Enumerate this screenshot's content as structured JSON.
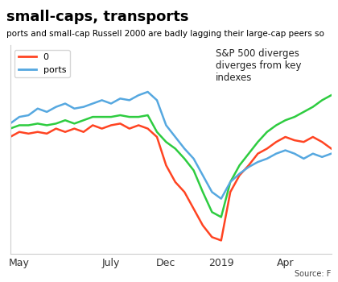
{
  "chart_data": {
    "type": "line",
    "title": "small-caps, transports",
    "subtitle": "ports and small-cap Russell 2000 are badly lagging their large-cap peers so",
    "annotations": [
      "S&P 500 diverges diverges from key indexes"
    ],
    "source": "Source: F",
    "categories": [
      null,
      "May",
      null,
      null,
      null,
      null,
      null,
      null,
      null,
      null,
      null,
      "July",
      null,
      null,
      null,
      null,
      null,
      "Dec",
      null,
      null,
      null,
      null,
      null,
      "2019",
      null,
      null,
      null,
      null,
      null,
      null,
      "Apr",
      null,
      null,
      null,
      null,
      null
    ],
    "series": [
      {
        "color": "#2ecc40",
        "values": [
          75,
          77,
          77,
          78,
          77,
          78,
          80,
          78,
          80,
          82,
          82,
          82,
          83,
          82,
          82,
          83,
          73,
          67,
          63,
          57,
          50,
          37,
          25,
          22,
          43,
          53,
          60,
          67,
          73,
          77,
          80,
          82,
          85,
          88,
          92,
          95
        ]
      },
      {
        "name": "0",
        "color": "#ff4422",
        "values": [
          70,
          73,
          72,
          73,
          72,
          75,
          73,
          75,
          73,
          77,
          75,
          77,
          78,
          75,
          77,
          75,
          70,
          53,
          43,
          37,
          27,
          17,
          10,
          8,
          37,
          47,
          53,
          60,
          63,
          67,
          70,
          68,
          67,
          70,
          67,
          63
        ]
      },
      {
        "name": "ports",
        "color": "#56a8e0",
        "values": [
          78,
          82,
          83,
          87,
          85,
          88,
          90,
          87,
          88,
          90,
          92,
          90,
          93,
          92,
          95,
          97,
          92,
          77,
          70,
          63,
          57,
          47,
          37,
          33,
          43,
          48,
          52,
          55,
          57,
          60,
          62,
          60,
          57,
          60,
          58,
          60
        ]
      }
    ],
    "ylim": [
      0,
      125
    ],
    "tick_labels": "x",
    "legend": "upper left",
    "grid": false
  }
}
